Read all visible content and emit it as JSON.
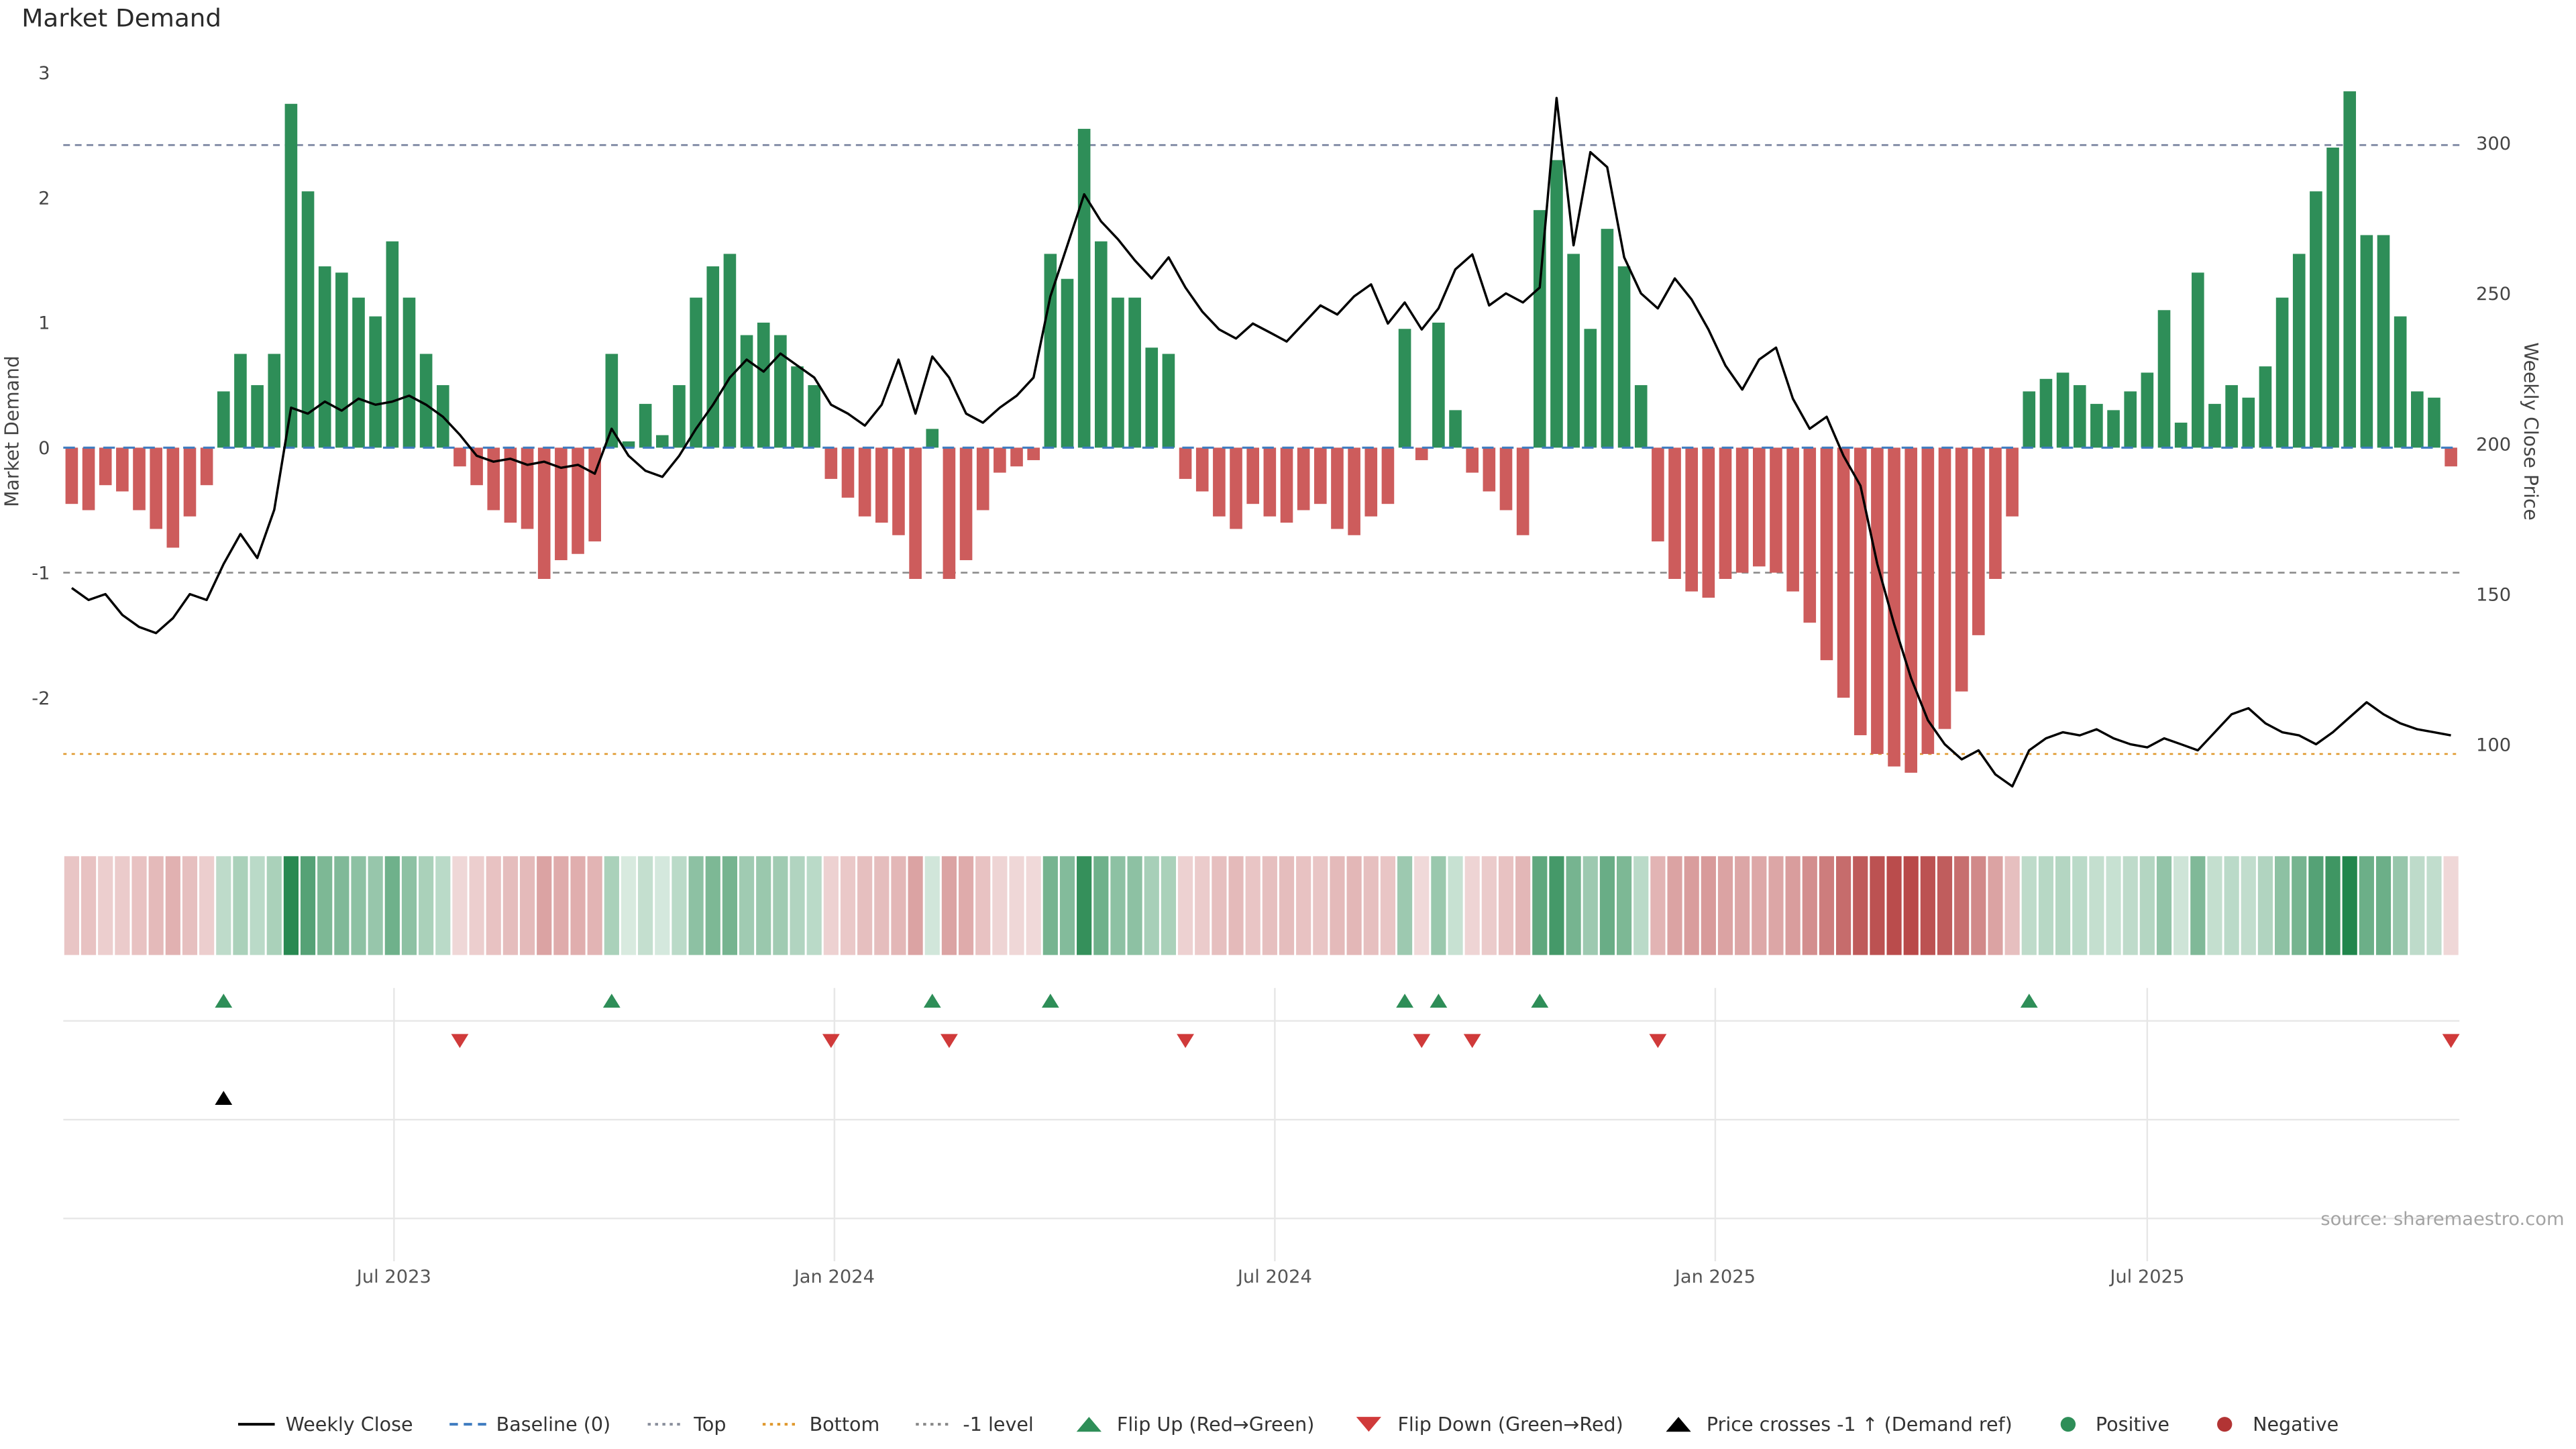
{
  "title": "Market Demand",
  "source": "source: sharemaestro.com",
  "legend": {
    "items": [
      {
        "label": "Weekly Close",
        "swatch": "line",
        "color": "#000000"
      },
      {
        "label": "Baseline (0)",
        "swatch": "dash",
        "color": "#3f7cc0"
      },
      {
        "label": "Top",
        "swatch": "dot",
        "color": "#8a8f9c"
      },
      {
        "label": "Bottom",
        "swatch": "dot",
        "color": "#e0992e"
      },
      {
        "label": "-1 level",
        "swatch": "dot",
        "color": "#888888"
      },
      {
        "label": "Flip Up (Red→Green)",
        "swatch": "tri-up",
        "color": "#2e8e58"
      },
      {
        "label": "Flip Down (Green→Red)",
        "swatch": "tri-down",
        "color": "#d03a3a"
      },
      {
        "label": "Price crosses -1 ↑ (Demand ref)",
        "swatch": "tri-up",
        "color": "#000000"
      },
      {
        "label": "Positive",
        "swatch": "circle",
        "color": "#2e8e58"
      },
      {
        "label": "Negative",
        "swatch": "circle",
        "color": "#b23434"
      }
    ]
  },
  "chart_data": {
    "type": "combo",
    "title": "Market Demand",
    "x_unit": "week",
    "n_points": 142,
    "x_ticks": [
      {
        "label": "Jul 2023",
        "week": 19.1
      },
      {
        "label": "Jan 2024",
        "week": 45.2
      },
      {
        "label": "Jul 2024",
        "week": 71.3
      },
      {
        "label": "Jan 2025",
        "week": 97.4
      },
      {
        "label": "Jul 2025",
        "week": 123.0
      }
    ],
    "axes": {
      "left": {
        "label": "Market Demand",
        "ticks": [
          3,
          2,
          1,
          0,
          -1,
          -2
        ],
        "range": [
          -2.82,
          3.08
        ]
      },
      "right": {
        "label": "Weekly Close Price",
        "ticks": [
          300,
          250,
          200,
          150,
          100
        ],
        "range": [
          81.4,
          326.8
        ]
      }
    },
    "reference_lines": {
      "baseline": {
        "value": 0,
        "label": "Baseline (0)",
        "color": "#3f7cc0",
        "style": "dashed"
      },
      "top": {
        "value": 2.42,
        "label": "Top",
        "color": "#7a85a0",
        "style": "dashed"
      },
      "bottom": {
        "value": -2.45,
        "label": "Bottom",
        "color": "#e0992e",
        "style": "dotted"
      },
      "minus_one": {
        "value": -1,
        "label": "-1 level",
        "color": "#8c8c8c",
        "style": "dashed"
      }
    },
    "series": [
      {
        "name": "Market Demand",
        "type": "bar",
        "axis": "left",
        "positive_color": "#2e8e58",
        "negative_color": "#cd5c5c",
        "values": [
          -0.45,
          -0.5,
          -0.3,
          -0.35,
          -0.5,
          -0.65,
          -0.8,
          -0.55,
          -0.3,
          0.45,
          0.75,
          0.5,
          0.75,
          2.75,
          2.05,
          1.45,
          1.4,
          1.2,
          1.05,
          1.65,
          1.2,
          0.75,
          0.5,
          -0.15,
          -0.3,
          -0.5,
          -0.6,
          -0.65,
          -1.05,
          -0.9,
          -0.85,
          -0.75,
          0.75,
          0.05,
          0.35,
          0.1,
          0.5,
          1.2,
          1.45,
          1.55,
          0.9,
          1.0,
          0.9,
          0.65,
          0.5,
          -0.25,
          -0.4,
          -0.55,
          -0.6,
          -0.7,
          -1.05,
          0.15,
          -1.05,
          -0.9,
          -0.5,
          -0.2,
          -0.15,
          -0.1,
          1.55,
          1.35,
          2.55,
          1.65,
          1.2,
          1.2,
          0.8,
          0.75,
          -0.25,
          -0.35,
          -0.55,
          -0.65,
          -0.45,
          -0.55,
          -0.6,
          -0.5,
          -0.45,
          -0.65,
          -0.7,
          -0.55,
          -0.45,
          0.95,
          -0.1,
          1.0,
          0.3,
          -0.2,
          -0.35,
          -0.5,
          -0.7,
          1.9,
          2.3,
          1.55,
          0.95,
          1.75,
          1.45,
          0.5,
          -0.75,
          -1.05,
          -1.15,
          -1.2,
          -1.05,
          -1.0,
          -0.95,
          -1.0,
          -1.15,
          -1.4,
          -1.7,
          -2.0,
          -2.3,
          -2.45,
          -2.55,
          -2.6,
          -2.45,
          -2.25,
          -1.95,
          -1.5,
          -1.05,
          -0.55,
          0.45,
          0.55,
          0.6,
          0.5,
          0.35,
          0.3,
          0.45,
          0.6,
          1.1,
          0.2,
          1.4,
          0.35,
          0.5,
          0.4,
          0.65,
          1.2,
          1.55,
          2.05,
          2.4,
          2.85,
          1.7,
          1.7,
          1.05,
          0.45,
          0.4,
          -0.15
        ]
      },
      {
        "name": "Weekly Close",
        "type": "line",
        "axis": "right",
        "color": "#000000",
        "values": [
          152,
          148,
          150,
          143,
          139,
          137,
          142,
          150,
          148,
          160,
          170,
          162,
          178,
          212,
          210,
          214,
          211,
          215,
          213,
          214,
          216,
          213,
          209,
          203,
          196,
          194,
          195,
          193,
          194,
          192,
          193,
          190,
          205,
          196,
          191,
          189,
          196,
          205,
          213,
          222,
          228,
          224,
          230,
          226,
          222,
          213,
          210,
          206,
          213,
          228,
          210,
          229,
          222,
          210,
          207,
          212,
          216,
          222,
          249,
          266,
          283,
          274,
          268,
          261,
          255,
          262,
          252,
          244,
          238,
          235,
          240,
          237,
          234,
          240,
          246,
          243,
          249,
          253,
          240,
          247,
          238,
          245,
          258,
          263,
          246,
          250,
          247,
          252,
          315,
          266,
          297,
          292,
          262,
          250,
          245,
          255,
          248,
          238,
          226,
          218,
          228,
          232,
          215,
          205,
          209,
          196,
          186,
          160,
          140,
          122,
          108,
          100,
          95,
          98,
          90,
          86,
          98,
          102,
          104,
          103,
          105,
          102,
          100,
          99,
          102,
          100,
          98,
          104,
          110,
          112,
          107,
          104,
          103,
          100,
          104,
          109,
          114,
          110,
          107,
          105,
          104,
          103
        ]
      }
    ],
    "markers": {
      "flip_up": {
        "label": "Flip Up (Red→Green)",
        "color": "#2e8e58",
        "weeks": [
          9,
          32,
          51,
          58,
          79,
          81,
          87,
          116
        ]
      },
      "flip_down": {
        "label": "Flip Down (Green→Red)",
        "color": "#d03a3a",
        "weeks": [
          23,
          45,
          52,
          66,
          80,
          83,
          94,
          141
        ]
      },
      "price_cross": {
        "label": "Price crosses -1 ↑ (Demand ref)",
        "color": "#000000",
        "weeks": [
          9
        ]
      }
    },
    "heatmap": {
      "source_series": "Market Demand",
      "positive_base": "#1e8449",
      "negative_base": "#b23838"
    }
  }
}
